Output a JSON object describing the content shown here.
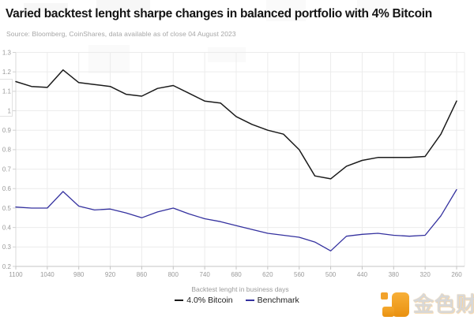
{
  "header": {
    "title": "Varied backtest lenght sharpe changes in balanced portfolio with 4% Bitcoin",
    "source": "Source: Bloomberg, CoinShares, data available as of close 04 August 2023"
  },
  "chart_data": {
    "type": "line",
    "title": "Varied backtest lenght sharpe changes in balanced portfolio with 4% Bitcoin",
    "xlabel": "Backtest lenght in business days",
    "ylabel": "",
    "x": [
      1100,
      1070,
      1040,
      1010,
      980,
      950,
      920,
      890,
      860,
      830,
      800,
      770,
      740,
      710,
      680,
      650,
      620,
      590,
      560,
      530,
      500,
      470,
      440,
      410,
      380,
      350,
      320,
      290,
      260
    ],
    "series": [
      {
        "name": "4.0% Bitcoin",
        "color": "#1a1a1a",
        "width": 1.5,
        "values": [
          1.15,
          1.125,
          1.12,
          1.21,
          1.145,
          1.135,
          1.125,
          1.085,
          1.075,
          1.115,
          1.13,
          1.09,
          1.05,
          1.04,
          0.97,
          0.93,
          0.9,
          0.88,
          0.8,
          0.665,
          0.65,
          0.715,
          0.745,
          0.76,
          0.76,
          0.76,
          0.765,
          0.88,
          1.05
        ]
      },
      {
        "name": "Benchmark",
        "color": "#34319f",
        "width": 1.3,
        "values": [
          0.505,
          0.5,
          0.5,
          0.585,
          0.51,
          0.49,
          0.495,
          0.475,
          0.45,
          0.48,
          0.5,
          0.47,
          0.445,
          0.43,
          0.41,
          0.39,
          0.37,
          0.36,
          0.35,
          0.325,
          0.28,
          0.355,
          0.365,
          0.37,
          0.36,
          0.355,
          0.36,
          0.46,
          0.595
        ]
      }
    ],
    "ylim": [
      0.2,
      1.3
    ],
    "yticks": [
      "1.3",
      "1.2",
      "1.1",
      "1",
      "0.9",
      "0.8",
      "0.7",
      "0.6",
      "0.5",
      "0.4",
      "0.3",
      "0.2"
    ],
    "xticks": [
      1100,
      1040,
      980,
      920,
      860,
      800,
      740,
      680,
      620,
      560,
      500,
      440,
      380,
      320,
      260
    ],
    "xaxis_reversed": true,
    "grid": true,
    "legend_position": "bottom"
  },
  "watermark": {
    "text": "金色财经",
    "brand_color": "#f09c1f"
  }
}
